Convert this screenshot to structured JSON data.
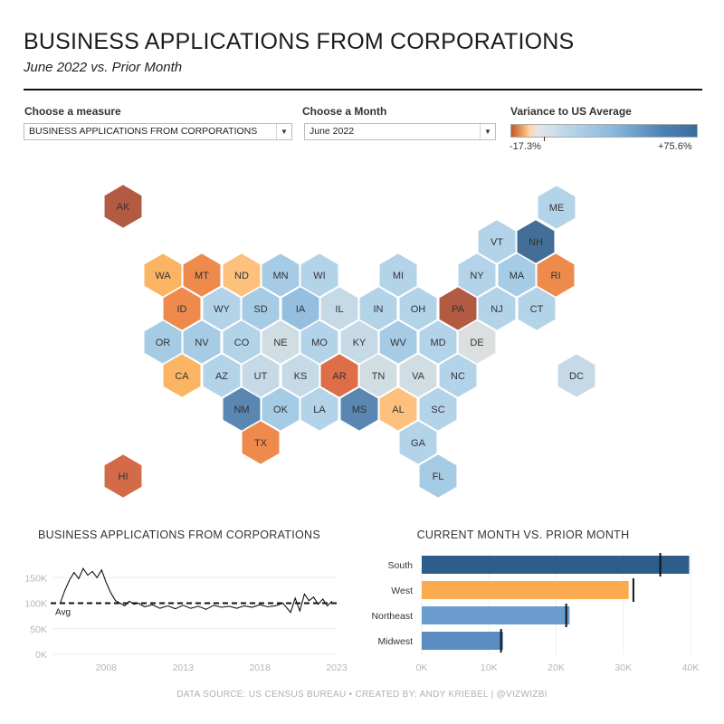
{
  "header": {
    "title": "BUSINESS APPLICATIONS FROM CORPORATIONS",
    "subtitle": "June 2022 vs. Prior Month"
  },
  "controls": {
    "measure_label": "Choose a measure",
    "measure_value": "BUSINESS APPLICATIONS FROM CORPORATIONS",
    "month_label": "Choose a Month",
    "month_value": "June 2022",
    "legend_label": "Variance to US Average",
    "legend_min": "-17.3%",
    "legend_max": "+75.6%"
  },
  "map": {
    "hexes": [
      {
        "state": "AK",
        "color": "#b35a43"
      },
      {
        "state": "ME",
        "color": "#b3d3e9"
      },
      {
        "state": "VT",
        "color": "#b3d3e9"
      },
      {
        "state": "NH",
        "color": "#426e98"
      },
      {
        "state": "WA",
        "color": "#fbb562"
      },
      {
        "state": "MT",
        "color": "#ee8a4c"
      },
      {
        "state": "ND",
        "color": "#fdc17d"
      },
      {
        "state": "MN",
        "color": "#a6cbe5"
      },
      {
        "state": "WI",
        "color": "#b3d3e9"
      },
      {
        "state": "MI",
        "color": "#b3d3e9"
      },
      {
        "state": "NY",
        "color": "#b3d3e9"
      },
      {
        "state": "MA",
        "color": "#a6cbe5"
      },
      {
        "state": "RI",
        "color": "#ee8a4c"
      },
      {
        "state": "ID",
        "color": "#ee8a4c"
      },
      {
        "state": "WY",
        "color": "#b3d3e9"
      },
      {
        "state": "SD",
        "color": "#a6cbe5"
      },
      {
        "state": "IA",
        "color": "#94bfdf"
      },
      {
        "state": "IL",
        "color": "#c5dae6"
      },
      {
        "state": "IN",
        "color": "#b3d3e9"
      },
      {
        "state": "OH",
        "color": "#b3d3e9"
      },
      {
        "state": "PA",
        "color": "#b35a43"
      },
      {
        "state": "NJ",
        "color": "#b3d3e9"
      },
      {
        "state": "CT",
        "color": "#b3d3e9"
      },
      {
        "state": "OR",
        "color": "#a6cbe5"
      },
      {
        "state": "NV",
        "color": "#a6cbe5"
      },
      {
        "state": "CO",
        "color": "#b3d3e9"
      },
      {
        "state": "NE",
        "color": "#d0dde3"
      },
      {
        "state": "MO",
        "color": "#b3d3e9"
      },
      {
        "state": "KY",
        "color": "#c5dae6"
      },
      {
        "state": "WV",
        "color": "#a6cbe5"
      },
      {
        "state": "MD",
        "color": "#b3d3e9"
      },
      {
        "state": "DE",
        "color": "#dcdfdf"
      },
      {
        "state": "CA",
        "color": "#fbb562"
      },
      {
        "state": "AZ",
        "color": "#b3d3e9"
      },
      {
        "state": "UT",
        "color": "#c5dae6"
      },
      {
        "state": "KS",
        "color": "#c5dae6"
      },
      {
        "state": "AR",
        "color": "#dd6e47"
      },
      {
        "state": "TN",
        "color": "#d0dde3"
      },
      {
        "state": "VA",
        "color": "#d0dde3"
      },
      {
        "state": "NC",
        "color": "#b3d3e9"
      },
      {
        "state": "DC",
        "color": "#c5dae6"
      },
      {
        "state": "NM",
        "color": "#5a86b2"
      },
      {
        "state": "OK",
        "color": "#a6cbe5"
      },
      {
        "state": "LA",
        "color": "#b3d3e9"
      },
      {
        "state": "MS",
        "color": "#5a86b2"
      },
      {
        "state": "AL",
        "color": "#fdc17d"
      },
      {
        "state": "SC",
        "color": "#b3d3e9"
      },
      {
        "state": "TX",
        "color": "#ee8a4c"
      },
      {
        "state": "GA",
        "color": "#b3d3e9"
      },
      {
        "state": "HI",
        "color": "#d36a48"
      },
      {
        "state": "FL",
        "color": "#a6cbe5"
      }
    ]
  },
  "chart_data": [
    {
      "type": "line",
      "title": "BUSINESS APPLICATIONS FROM CORPORATIONS",
      "xlabel": "",
      "ylabel": "",
      "x_ticks": [
        "2008",
        "2013",
        "2018",
        "2023"
      ],
      "x_range": [
        2004.5,
        2023.0
      ],
      "y_ticks": [
        "150K",
        "100K",
        "50K",
        "0K"
      ],
      "y_tick_values": [
        150000,
        100000,
        50000,
        0
      ],
      "average_value": 100000,
      "average_label": "Avg",
      "series": [
        {
          "x": [
            2005.0,
            2005.3,
            2005.6,
            2005.9,
            2006.2,
            2006.5,
            2006.8,
            2007.1,
            2007.4,
            2007.7,
            2008.0,
            2008.3,
            2008.6,
            2008.9,
            2009.2,
            2009.5,
            2009.8,
            2010.1,
            2010.5,
            2011.0,
            2011.5,
            2012.0,
            2012.5,
            2013.0,
            2013.5,
            2014.0,
            2014.5,
            2015.0,
            2015.5,
            2016.0,
            2016.5,
            2017.0,
            2017.5,
            2018.0,
            2018.5,
            2019.0,
            2019.5,
            2020.0,
            2020.3,
            2020.6,
            2020.9,
            2021.2,
            2021.5,
            2021.8,
            2022.1,
            2022.4,
            2022.7
          ],
          "y": [
            100000,
            125000,
            145000,
            160000,
            148000,
            168000,
            155000,
            162000,
            150000,
            165000,
            140000,
            120000,
            105000,
            100000,
            95000,
            104000,
            98000,
            100000,
            93000,
            97000,
            90000,
            95000,
            89000,
            96000,
            90000,
            94000,
            88000,
            96000,
            92000,
            94000,
            90000,
            95000,
            92000,
            97000,
            93000,
            95000,
            100000,
            82000,
            110000,
            85000,
            118000,
            105000,
            112000,
            98000,
            108000,
            95000,
            104000
          ]
        }
      ]
    },
    {
      "type": "bar",
      "title": "CURRENT MONTH VS. PRIOR MONTH",
      "categories": [
        "South",
        "West",
        "Northeast",
        "Midwest"
      ],
      "series": [
        {
          "values": [
            39800,
            30800,
            22000,
            12100
          ]
        },
        {
          "values": [
            35500,
            31500,
            21500,
            11800
          ]
        }
      ],
      "colors": [
        "#2c5d8b",
        "#fbab4f",
        "#6a9dce",
        "#5a8cc2"
      ],
      "x_ticks": [
        "0K",
        "10K",
        "20K",
        "30K",
        "40K"
      ],
      "x_tick_values": [
        0,
        10000,
        20000,
        30000,
        40000
      ],
      "xlim": [
        0,
        40000
      ]
    }
  ],
  "footer": {
    "text": "DATA SOURCE: US CENSUS BUREAU  •  CREATED BY: ANDY KRIEBEL | @VIZWIZBI"
  }
}
